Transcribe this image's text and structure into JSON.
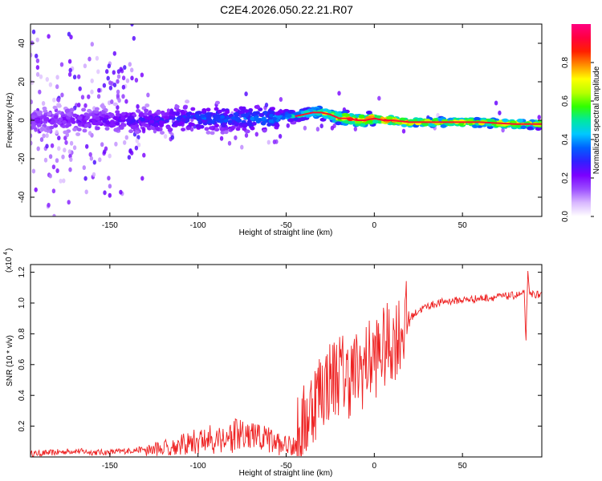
{
  "title": "C2E4.2026.050.22.21.R07",
  "chart_data": [
    {
      "type": "heatmap",
      "xlabel": "Height of straight line (km)",
      "ylabel": "Frequency (Hz)",
      "xlim": [
        -195,
        95
      ],
      "ylim": [
        -50,
        50
      ],
      "xticks": [
        -150,
        -100,
        -50,
        0,
        50
      ],
      "yticks": [
        -40,
        -20,
        0,
        20,
        40
      ],
      "colorbar": {
        "label": "Normalized spectral amplitude",
        "range": [
          0,
          1
        ],
        "ticks": [
          "0.0",
          "0.2",
          "0.4",
          "0.6",
          "0.8"
        ],
        "colors": [
          "#ffffff",
          "#d9b8ff",
          "#9b4dff",
          "#7a00ff",
          "#3020ff",
          "#0060ff",
          "#00c8ff",
          "#00e8a0",
          "#30ff00",
          "#b8ff00",
          "#ffff00",
          "#ff9000",
          "#ff2000",
          "#ff0040",
          "#ff0080"
        ]
      },
      "ridge": {
        "x": [
          -195,
          -150,
          -120,
          -100,
          -80,
          -60,
          -50,
          -45,
          -40,
          -35,
          -30,
          -25,
          -20,
          -15,
          -10,
          -5,
          0,
          5,
          10,
          20,
          40,
          60,
          80,
          95
        ],
        "freq": [
          0,
          0,
          0,
          1,
          1,
          1,
          2,
          2,
          3,
          4,
          4,
          3,
          1,
          1,
          0,
          0,
          1,
          0,
          0,
          -1,
          -1,
          -1,
          -2,
          -2
        ],
        "amplitude": [
          0.2,
          0.25,
          0.3,
          0.35,
          0.38,
          0.4,
          0.45,
          0.5,
          0.55,
          0.6,
          0.65,
          0.7,
          0.8,
          0.85,
          0.88,
          0.88,
          0.9,
          0.88,
          0.85,
          0.8,
          0.78,
          0.78,
          0.8,
          0.75
        ]
      }
    },
    {
      "type": "line",
      "xlabel": "Height of straight line (km)",
      "ylabel": "SNR (10 * v/v)",
      "yscale_label": "(x10",
      "yscale_exp": "4",
      "xlim": [
        -195,
        95
      ],
      "ylim": [
        0,
        1.25
      ],
      "xticks": [
        -150,
        -100,
        -50,
        0,
        50
      ],
      "yticks": [
        0.2,
        0.4,
        0.6,
        0.8,
        1.0,
        1.2
      ],
      "series": [
        {
          "color": "#ee2222",
          "x": [
            -195,
            -180,
            -170,
            -160,
            -150,
            -140,
            -130,
            -120,
            -110,
            -100,
            -90,
            -80,
            -70,
            -60,
            -55,
            -50,
            -45,
            -40,
            -35,
            -30,
            -25,
            -20,
            -15,
            -10,
            -5,
            0,
            5,
            10,
            15,
            20,
            25,
            30,
            40,
            50,
            60,
            70,
            80,
            85,
            86,
            87,
            88,
            90,
            95
          ],
          "y": [
            0.02,
            0.03,
            0.04,
            0.03,
            0.03,
            0.04,
            0.05,
            0.07,
            0.09,
            0.12,
            0.14,
            0.16,
            0.15,
            0.13,
            0.1,
            0.09,
            0.1,
            0.2,
            0.35,
            0.45,
            0.5,
            0.55,
            0.52,
            0.55,
            0.6,
            0.65,
            0.7,
            0.75,
            0.82,
            0.9,
            0.95,
            0.98,
            1.01,
            1.02,
            1.03,
            1.04,
            1.05,
            1.06,
            0.75,
            1.2,
            1.05,
            1.06,
            1.05
          ]
        }
      ]
    }
  ]
}
